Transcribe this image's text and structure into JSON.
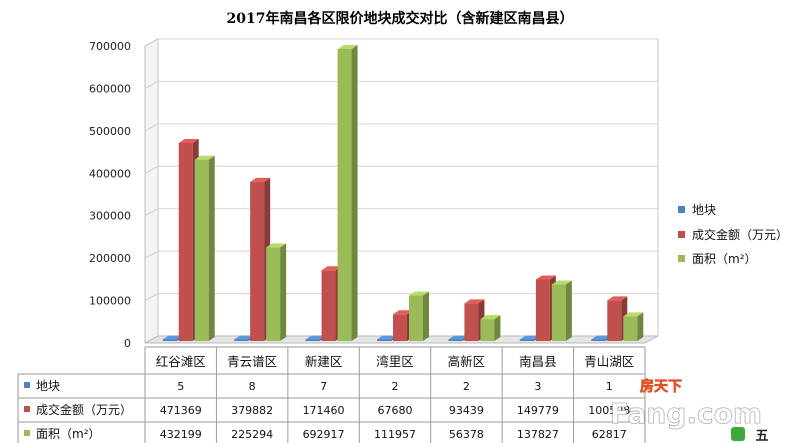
{
  "chart_data": {
    "type": "bar",
    "title": "2017年南昌各区限价地块成交对比（含新建区南昌县）",
    "categories": [
      "红谷滩区",
      "青云谱区",
      "新建区",
      "湾里区",
      "高新区",
      "南昌县",
      "青山湖区"
    ],
    "series": [
      {
        "name": "地块",
        "color": "#4F81BD",
        "values": [
          5,
          8,
          7,
          2,
          2,
          3,
          1
        ],
        "labels": [
          "5",
          "8",
          "7",
          "2",
          "2",
          "3",
          "1"
        ]
      },
      {
        "name": "成交金额（万元）",
        "color": "#C0504D",
        "values": [
          471369,
          379882,
          171460,
          67680,
          93439,
          149779,
          100508
        ],
        "labels": [
          "471369",
          "379882",
          "171460",
          "67680",
          "93439",
          "149779",
          "100508"
        ]
      },
      {
        "name": "面积（m²）",
        "color": "#9BBB59",
        "values": [
          432199,
          225294,
          692917,
          111957,
          56378,
          137827,
          62817
        ],
        "labels": [
          "432199",
          "225294",
          "692917",
          "111957",
          "56378",
          "137827",
          "62817"
        ]
      }
    ],
    "yticks": [
      "0",
      "100000",
      "200000",
      "300000",
      "400000",
      "500000",
      "600000",
      "700000"
    ],
    "ylim": [
      0,
      700000
    ],
    "grid": true,
    "legend_position": "right",
    "data_table": true
  },
  "watermark": {
    "brand_cn": "房天下",
    "brand_en": "Fang.com",
    "corner_text": "五"
  }
}
